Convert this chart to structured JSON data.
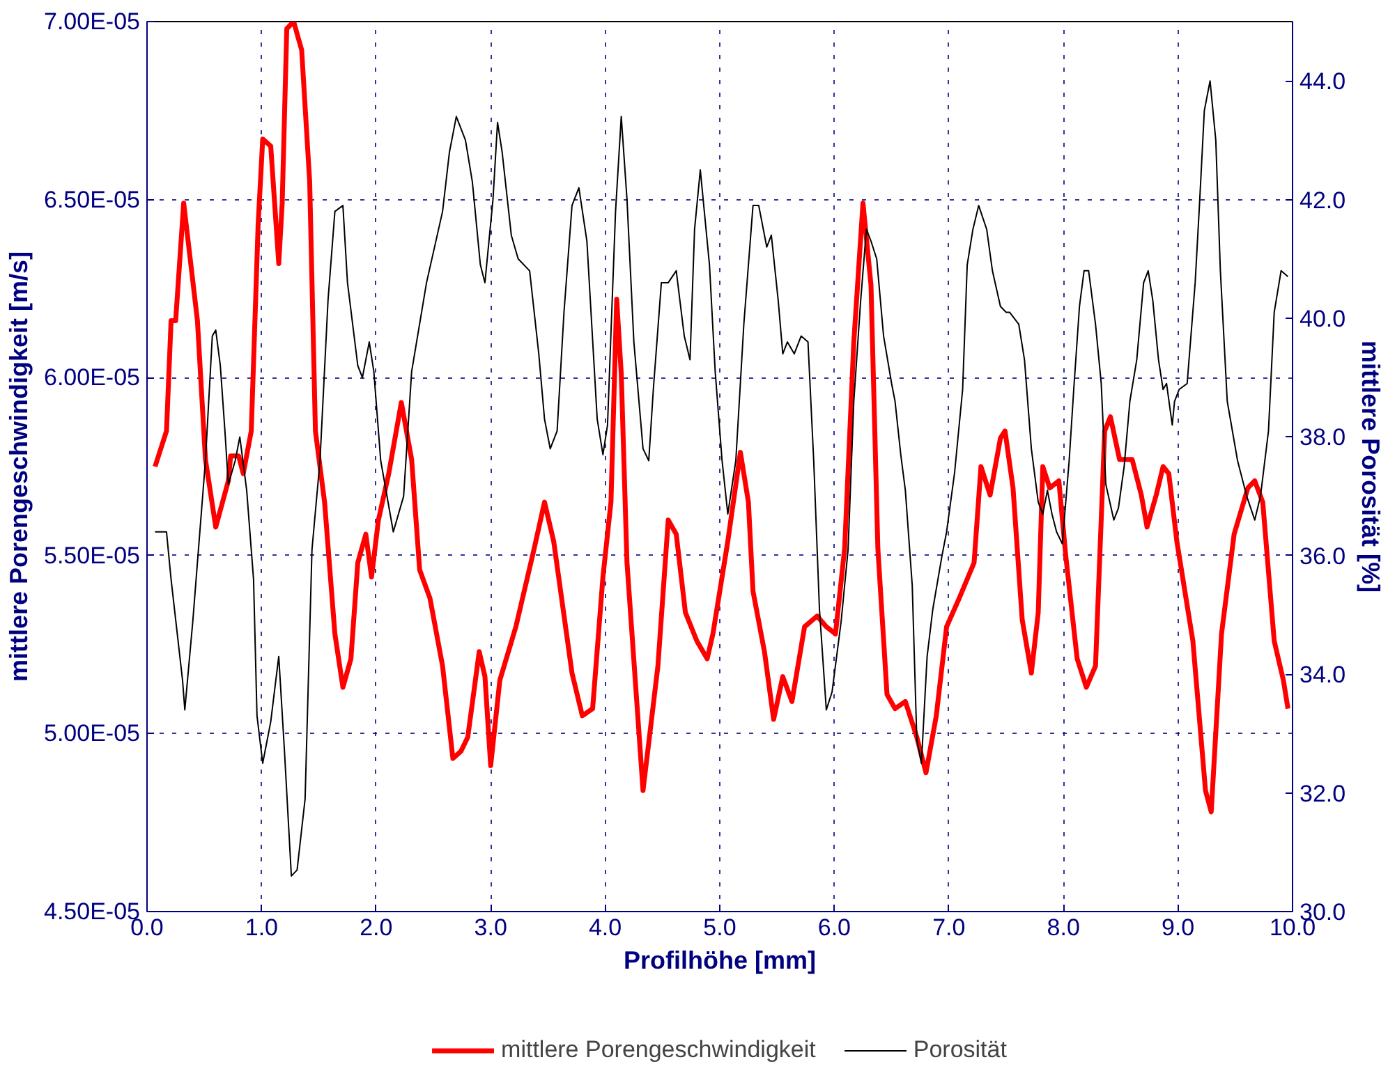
{
  "chart_data": {
    "type": "line",
    "xlabel": "Profilhöhe [mm]",
    "ylabel": "mittlere Porengeschwindigkeit [m/s]",
    "y2label": "mittlere Porosität [%]",
    "xlim": [
      0,
      10
    ],
    "xticks": [
      {
        "value": 0,
        "label": "0.0"
      },
      {
        "value": 1,
        "label": "1.0"
      },
      {
        "value": 2,
        "label": "2.0"
      },
      {
        "value": 3,
        "label": "3.0"
      },
      {
        "value": 4,
        "label": "4.0"
      },
      {
        "value": 5,
        "label": "5.0"
      },
      {
        "value": 6,
        "label": "6.0"
      },
      {
        "value": 7,
        "label": "7.0"
      },
      {
        "value": 8,
        "label": "8.0"
      },
      {
        "value": 9,
        "label": "9.0"
      },
      {
        "value": 10,
        "label": "10.0"
      }
    ],
    "ylim": [
      4.5e-05,
      7e-05
    ],
    "yticks": [
      {
        "value": 4.5e-05,
        "label": "4.50E-05"
      },
      {
        "value": 5e-05,
        "label": "5.00E-05"
      },
      {
        "value": 5.5e-05,
        "label": "5.50E-05"
      },
      {
        "value": 6e-05,
        "label": "6.00E-05"
      },
      {
        "value": 6.5e-05,
        "label": "6.50E-05"
      },
      {
        "value": 7e-05,
        "label": "7.00E-05"
      }
    ],
    "y2lim": [
      30,
      45
    ],
    "y2ticks": [
      {
        "value": 30,
        "label": "30.0"
      },
      {
        "value": 32,
        "label": "32.0"
      },
      {
        "value": 34,
        "label": "34.0"
      },
      {
        "value": 36,
        "label": "36.0"
      },
      {
        "value": 38,
        "label": "38.0"
      },
      {
        "value": 40,
        "label": "40.0"
      },
      {
        "value": 42,
        "label": "42.0"
      },
      {
        "value": 44,
        "label": "44.0"
      }
    ],
    "grid": true,
    "legend": "bottom",
    "marker": "none",
    "line_style": "solid",
    "series": [
      {
        "name": "mittlere Porengeschwindigkeit",
        "color": "#ff0000",
        "x": [
          0.07,
          0.17,
          0.21,
          0.25,
          0.32,
          0.44,
          0.51,
          0.6,
          0.71,
          0.73,
          0.8,
          0.84,
          0.91,
          0.97,
          1.01,
          1.08,
          1.15,
          1.18,
          1.22,
          1.28,
          1.35,
          1.42,
          1.47,
          1.55,
          1.64,
          1.71,
          1.78,
          1.84,
          1.91,
          1.96,
          2.02,
          2.11,
          2.22,
          2.31,
          2.38,
          2.47,
          2.58,
          2.67,
          2.74,
          2.8,
          2.9,
          2.95,
          3.0,
          3.08,
          3.22,
          3.38,
          3.47,
          3.55,
          3.71,
          3.8,
          3.89,
          3.98,
          4.05,
          4.1,
          4.14,
          4.19,
          4.33,
          4.46,
          4.55,
          4.62,
          4.7,
          4.8,
          4.89,
          4.94,
          5.07,
          5.18,
          5.25,
          5.29,
          5.39,
          5.47,
          5.55,
          5.63,
          5.74,
          5.85,
          5.93,
          6.01,
          6.09,
          6.17,
          6.25,
          6.32,
          6.38,
          6.46,
          6.53,
          6.62,
          6.72,
          6.8,
          6.89,
          6.98,
          7.09,
          7.22,
          7.28,
          7.36,
          7.45,
          7.49,
          7.56,
          7.64,
          7.72,
          7.78,
          7.82,
          7.88,
          7.96,
          8.02,
          8.12,
          8.2,
          8.28,
          8.36,
          8.41,
          8.49,
          8.6,
          8.68,
          8.73,
          8.81,
          8.87,
          8.92,
          8.99,
          9.13,
          9.24,
          9.29,
          9.38,
          9.49,
          9.61,
          9.67,
          9.74,
          9.84,
          9.92,
          9.96
        ],
        "values": [
          5.75e-05,
          5.85e-05,
          6.16e-05,
          6.16e-05,
          6.49e-05,
          6.16e-05,
          5.77e-05,
          5.58e-05,
          5.71e-05,
          5.78e-05,
          5.78e-05,
          5.73e-05,
          5.85e-05,
          6.43e-05,
          6.67e-05,
          6.65e-05,
          6.32e-05,
          6.49e-05,
          6.98e-05,
          7e-05,
          6.92e-05,
          6.55e-05,
          5.85e-05,
          5.65e-05,
          5.28e-05,
          5.13e-05,
          5.21e-05,
          5.48e-05,
          5.56e-05,
          5.44e-05,
          5.6e-05,
          5.73e-05,
          5.93e-05,
          5.77e-05,
          5.46e-05,
          5.38e-05,
          5.19e-05,
          4.93e-05,
          4.95e-05,
          4.99e-05,
          5.23e-05,
          5.16e-05,
          4.91e-05,
          5.15e-05,
          5.3e-05,
          5.52e-05,
          5.65e-05,
          5.54e-05,
          5.17e-05,
          5.05e-05,
          5.07e-05,
          5.44e-05,
          5.65e-05,
          6.22e-05,
          6.01e-05,
          5.48e-05,
          4.84e-05,
          5.19e-05,
          5.6e-05,
          5.56e-05,
          5.34e-05,
          5.26e-05,
          5.21e-05,
          5.28e-05,
          5.54e-05,
          5.79e-05,
          5.65e-05,
          5.4e-05,
          5.23e-05,
          5.04e-05,
          5.16e-05,
          5.09e-05,
          5.3e-05,
          5.33e-05,
          5.3e-05,
          5.28e-05,
          5.52e-05,
          6.1e-05,
          6.49e-05,
          6.26e-05,
          5.52e-05,
          5.11e-05,
          5.07e-05,
          5.09e-05,
          4.99e-05,
          4.89e-05,
          5.05e-05,
          5.3e-05,
          5.38e-05,
          5.48e-05,
          5.75e-05,
          5.67e-05,
          5.83e-05,
          5.85e-05,
          5.69e-05,
          5.32e-05,
          5.17e-05,
          5.34e-05,
          5.75e-05,
          5.69e-05,
          5.71e-05,
          5.5e-05,
          5.21e-05,
          5.13e-05,
          5.19e-05,
          5.85e-05,
          5.89e-05,
          5.77e-05,
          5.77e-05,
          5.67e-05,
          5.58e-05,
          5.67e-05,
          5.75e-05,
          5.73e-05,
          5.54e-05,
          5.26e-05,
          4.84e-05,
          4.78e-05,
          5.28e-05,
          5.56e-05,
          5.69e-05,
          5.71e-05,
          5.65e-05,
          5.26e-05,
          5.15e-05,
          5.07e-05
        ]
      },
      {
        "name": "Porosität",
        "color": "#000000",
        "axis": "y2",
        "x": [
          0.07,
          0.17,
          0.21,
          0.31,
          0.33,
          0.4,
          0.51,
          0.57,
          0.6,
          0.64,
          0.68,
          0.71,
          0.77,
          0.81,
          0.87,
          0.93,
          0.96,
          1.01,
          1.08,
          1.15,
          1.2,
          1.26,
          1.31,
          1.38,
          1.44,
          1.51,
          1.58,
          1.64,
          1.71,
          1.75,
          1.84,
          1.88,
          1.94,
          1.98,
          2.04,
          2.15,
          2.24,
          2.31,
          2.44,
          2.58,
          2.64,
          2.7,
          2.74,
          2.78,
          2.84,
          2.91,
          2.95,
          3.02,
          3.06,
          3.1,
          3.18,
          3.24,
          3.34,
          3.42,
          3.47,
          3.52,
          3.58,
          3.64,
          3.71,
          3.77,
          3.84,
          3.93,
          3.98,
          4.02,
          4.09,
          4.14,
          4.19,
          4.25,
          4.33,
          4.38,
          4.42,
          4.49,
          4.55,
          4.62,
          4.69,
          4.74,
          4.78,
          4.83,
          4.91,
          4.96,
          5.02,
          5.07,
          5.14,
          5.21,
          5.29,
          5.34,
          5.41,
          5.45,
          5.51,
          5.55,
          5.59,
          5.65,
          5.71,
          5.77,
          5.82,
          5.87,
          5.93,
          5.98,
          6.06,
          6.12,
          6.17,
          6.23,
          6.28,
          6.32,
          6.37,
          6.43,
          6.5,
          6.53,
          6.58,
          6.62,
          6.68,
          6.72,
          6.76,
          6.81,
          6.86,
          6.94,
          6.98,
          7.05,
          7.12,
          7.16,
          7.21,
          7.26,
          7.33,
          7.38,
          7.45,
          7.5,
          7.53,
          7.61,
          7.66,
          7.72,
          7.78,
          7.82,
          7.86,
          7.9,
          7.94,
          7.99,
          8.05,
          8.09,
          8.14,
          8.18,
          8.22,
          8.28,
          8.33,
          8.37,
          8.44,
          8.48,
          8.53,
          8.58,
          8.64,
          8.7,
          8.74,
          8.78,
          8.83,
          8.87,
          8.9,
          8.95,
          8.97,
          9.01,
          9.08,
          9.15,
          9.19,
          9.23,
          9.28,
          9.33,
          9.37,
          9.43,
          9.52,
          9.6,
          9.67,
          9.72,
          9.79,
          9.84,
          9.9,
          9.96
        ],
        "values": [
          36.4,
          36.4,
          35.6,
          33.9,
          33.4,
          34.9,
          37.6,
          39.7,
          39.8,
          39.2,
          38.1,
          37.2,
          37.6,
          38.0,
          37.1,
          35.6,
          33.3,
          32.5,
          33.2,
          34.3,
          32.7,
          30.6,
          30.7,
          31.9,
          36.1,
          37.6,
          40.3,
          41.8,
          41.9,
          40.6,
          39.2,
          39.0,
          39.6,
          39.1,
          37.6,
          36.4,
          37.0,
          39.1,
          40.6,
          41.8,
          42.8,
          43.4,
          43.2,
          43.0,
          42.3,
          40.9,
          40.6,
          42.0,
          43.3,
          42.8,
          41.4,
          41.0,
          40.8,
          39.4,
          38.3,
          37.8,
          38.1,
          40.1,
          41.9,
          42.2,
          41.3,
          38.3,
          37.7,
          38.2,
          41.8,
          43.4,
          42.0,
          39.6,
          37.8,
          37.6,
          38.8,
          40.6,
          40.6,
          40.8,
          39.7,
          39.3,
          41.5,
          42.5,
          40.9,
          39.1,
          37.6,
          36.7,
          37.6,
          39.9,
          41.9,
          41.9,
          41.2,
          41.4,
          40.3,
          39.4,
          39.6,
          39.4,
          39.7,
          39.6,
          37.6,
          35.1,
          33.4,
          33.7,
          34.9,
          36.1,
          38.6,
          40.3,
          41.5,
          41.3,
          41.0,
          39.7,
          38.9,
          38.6,
          37.7,
          37.1,
          35.5,
          32.9,
          32.5,
          34.3,
          35.1,
          36.0,
          36.4,
          37.4,
          38.8,
          40.9,
          41.5,
          41.9,
          41.5,
          40.8,
          40.2,
          40.1,
          40.1,
          39.9,
          39.3,
          37.8,
          36.9,
          36.7,
          37.1,
          36.7,
          36.4,
          36.2,
          37.6,
          38.8,
          40.2,
          40.8,
          40.8,
          39.9,
          38.9,
          37.2,
          36.6,
          36.8,
          37.5,
          38.6,
          39.3,
          40.6,
          40.8,
          40.3,
          39.3,
          38.8,
          38.9,
          38.2,
          38.6,
          38.8,
          38.9,
          40.6,
          42.0,
          43.5,
          44.0,
          43.0,
          40.8,
          38.6,
          37.6,
          37.0,
          36.6,
          37.0,
          38.1,
          40.1,
          40.8,
          40.7
        ]
      }
    ]
  }
}
